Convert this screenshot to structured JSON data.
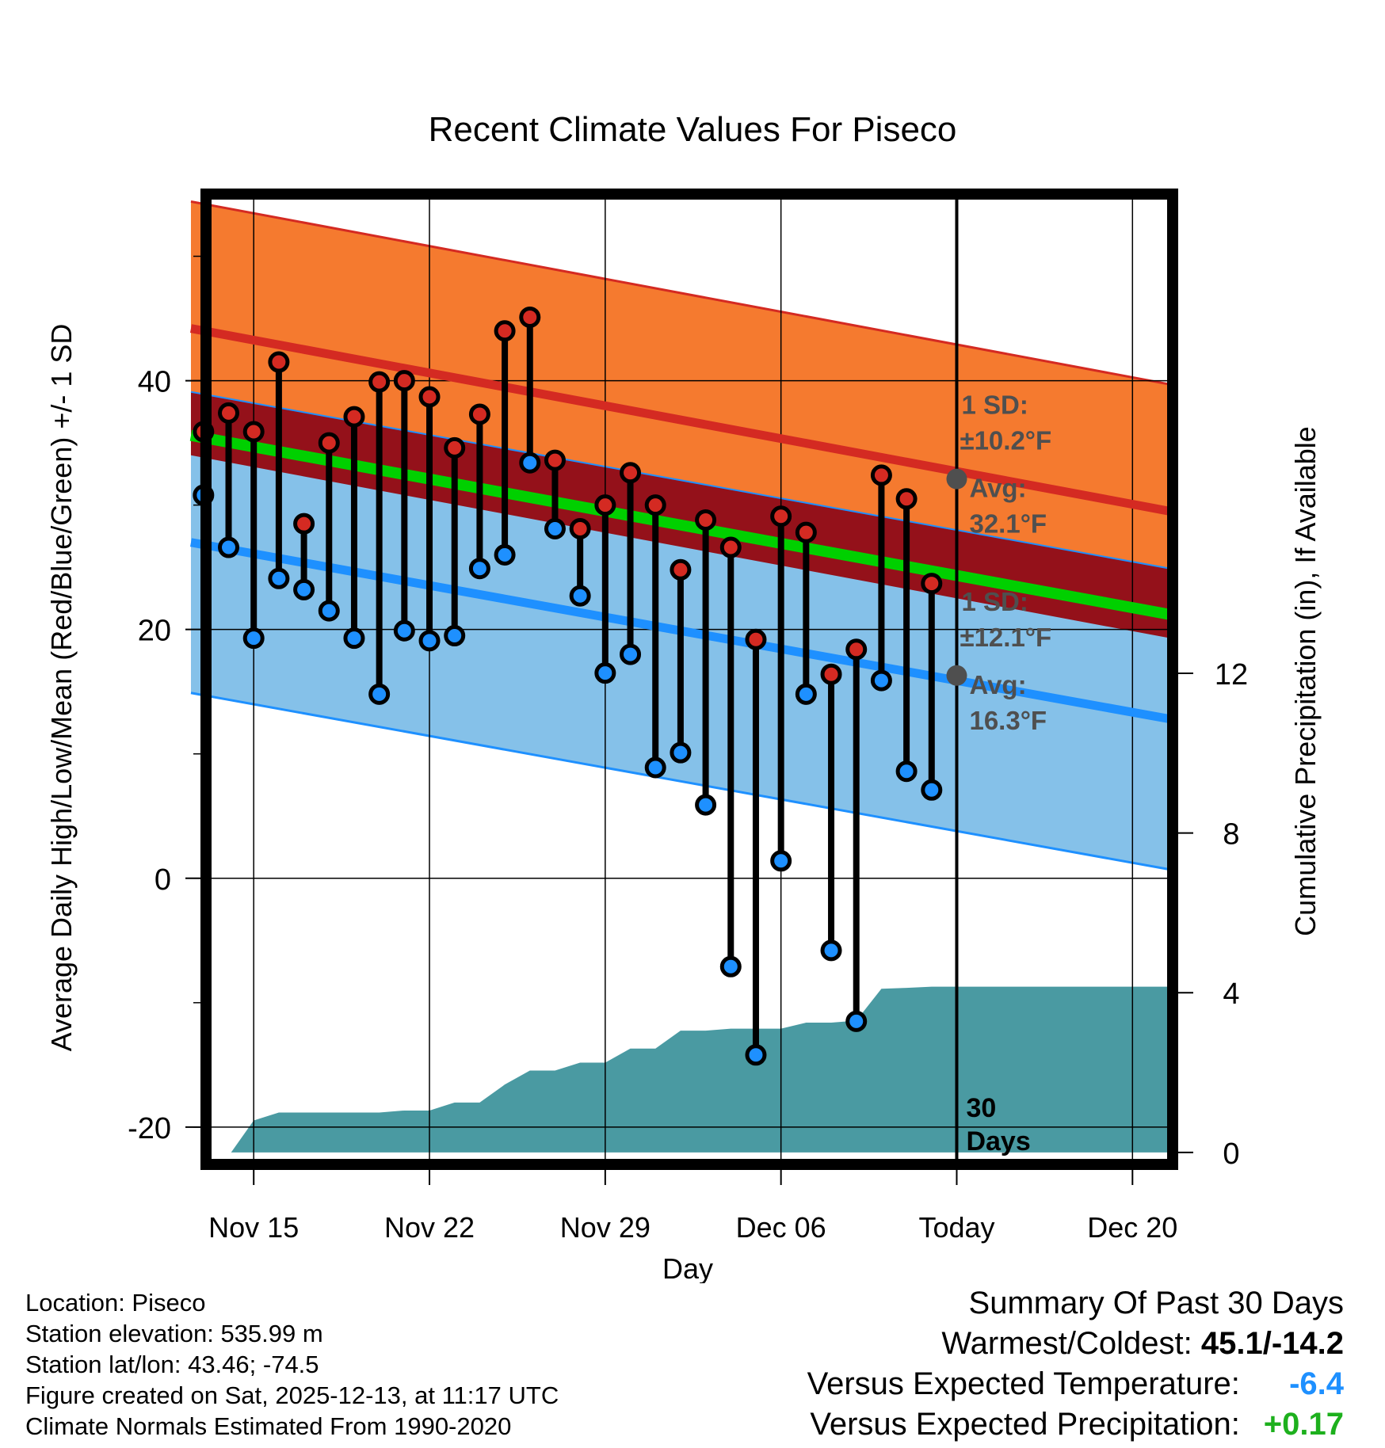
{
  "chart_data": {
    "type": "line",
    "title": "Recent Climate Values For Piseco",
    "xlabel": "Day",
    "ylabel": "Average Daily High/Low/Mean (Red/Blue/Green) +/- 1 SD",
    "y2label": "Cumulative Precipitation (in), If Available",
    "xlim": [
      -1.9,
      36.6
    ],
    "ylim": [
      -23,
      55
    ],
    "y2lim": [
      -0.3,
      24
    ],
    "x_ticks": [
      {
        "x": 0,
        "label": "Nov 15"
      },
      {
        "x": 7,
        "label": "Nov 22"
      },
      {
        "x": 14,
        "label": "Nov 29"
      },
      {
        "x": 21,
        "label": "Dec 06"
      },
      {
        "x": 28,
        "label": "Today"
      },
      {
        "x": 35,
        "label": "Dec 20"
      }
    ],
    "y_ticks": [
      -20,
      0,
      20,
      40
    ],
    "y2_ticks": [
      0,
      4,
      8,
      12
    ],
    "today_x": 28,
    "today_label": "30 Days",
    "days": [
      -2,
      -1,
      0,
      1,
      2,
      3,
      4,
      5,
      6,
      7,
      8,
      9,
      10,
      11,
      12,
      13,
      14,
      15,
      16,
      17,
      18,
      19,
      20,
      21,
      22,
      23,
      24,
      25,
      26,
      27
    ],
    "highs": [
      35.9,
      37.4,
      35.9,
      41.5,
      28.5,
      35.0,
      37.1,
      39.9,
      40.0,
      38.7,
      34.6,
      37.3,
      44.0,
      45.1,
      33.6,
      28.1,
      30.0,
      32.6,
      30.0,
      24.8,
      28.8,
      26.6,
      19.2,
      29.1,
      27.8,
      16.4,
      18.4,
      32.4,
      30.5,
      23.7
    ],
    "lows": [
      30.8,
      26.6,
      19.3,
      24.1,
      23.2,
      21.5,
      19.3,
      14.8,
      19.9,
      19.1,
      19.5,
      24.9,
      26.0,
      33.4,
      28.1,
      22.7,
      16.5,
      18.0,
      8.9,
      10.1,
      5.9,
      -7.1,
      -14.2,
      1.4,
      14.8,
      -5.8,
      -11.5,
      15.9,
      8.6,
      7.1
    ],
    "normals": {
      "x_range": [
        -2.5,
        36.5
      ],
      "high_avg": [
        44.2,
        29.5
      ],
      "high_sd": 10.2,
      "low_avg": [
        27.0,
        12.8
      ],
      "low_sd": 12.1,
      "mean_avg": [
        35.6,
        21.2
      ]
    },
    "precip_cumulative": [
      [
        -0.9,
        0
      ],
      [
        0,
        0.8
      ],
      [
        1,
        1.0
      ],
      [
        2,
        1.0
      ],
      [
        3,
        1.0
      ],
      [
        4,
        1.0
      ],
      [
        5,
        1.0
      ],
      [
        6,
        1.05
      ],
      [
        7,
        1.05
      ],
      [
        8,
        1.25
      ],
      [
        9,
        1.25
      ],
      [
        10,
        1.7
      ],
      [
        11,
        2.05
      ],
      [
        12,
        2.05
      ],
      [
        13,
        2.25
      ],
      [
        14,
        2.25
      ],
      [
        15,
        2.6
      ],
      [
        16,
        2.6
      ],
      [
        17,
        3.05
      ],
      [
        18,
        3.05
      ],
      [
        19,
        3.1
      ],
      [
        20,
        3.1
      ],
      [
        21,
        3.1
      ],
      [
        22,
        3.25
      ],
      [
        23,
        3.25
      ],
      [
        24,
        3.3
      ],
      [
        25,
        4.1
      ],
      [
        26,
        4.12
      ],
      [
        27,
        4.15
      ],
      [
        28,
        4.15
      ],
      [
        36.6,
        4.15
      ]
    ],
    "annotations": {
      "high_sd_label": "1 SD:",
      "high_sd_value": "±10.2°F",
      "high_avg_label": "Avg:",
      "high_avg_value": "32.1°F",
      "low_sd_label": "1 SD:",
      "low_sd_value": "±12.1°F",
      "low_avg_label": "Avg:",
      "low_avg_value": "16.3°F",
      "high_avg_today": 32.1,
      "low_avg_today": 16.3
    },
    "colors": {
      "high_band": "#f57a2f",
      "high_line": "#d42a22",
      "mean_band": "#94111a",
      "mean_line": "#00d000",
      "low_band": "#85c1e9",
      "low_line": "#1e90ff",
      "precip": "#4a9aa2",
      "high_dot": "#d42a22",
      "low_dot": "#1e90ff",
      "annotation": "#4f4f4f"
    }
  },
  "info": {
    "location": "Location: Piseco",
    "elevation": "Station elevation: 535.99 m",
    "latlon": "Station lat/lon: 43.46; -74.5",
    "created": "Figure created on Sat, 2025-12-13, at 11:17 UTC",
    "normals": "Climate Normals Estimated From 1990-2020"
  },
  "summary": {
    "title": "Summary Of Past 30 Days",
    "warm_cold_label": "Warmest/Coldest:",
    "warm_cold_value": "45.1/-14.2",
    "temp_label": "Versus Expected Temperature:",
    "temp_value": "-6.4",
    "precip_label": "Versus Expected Precipitation:",
    "precip_value": "+0.17"
  }
}
